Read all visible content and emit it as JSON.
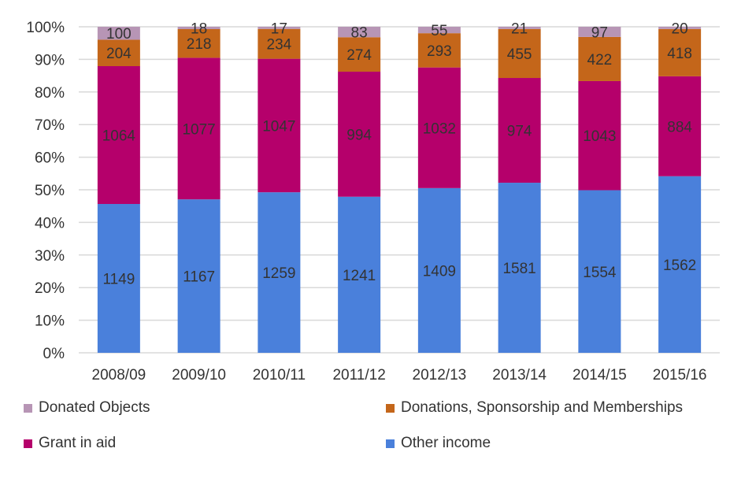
{
  "chart_data": {
    "type": "bar",
    "stacked": "percent",
    "categories": [
      "2008/09",
      "2009/10",
      "2010/11",
      "2011/12",
      "2012/13",
      "2013/14",
      "2014/15",
      "2015/16"
    ],
    "series": [
      {
        "name": "Other income",
        "color": "#4a80db",
        "values": [
          1149,
          1167,
          1259,
          1241,
          1409,
          1581,
          1554,
          1562
        ]
      },
      {
        "name": "Grant in aid",
        "color": "#b5006b",
        "values": [
          1064,
          1077,
          1047,
          994,
          1032,
          974,
          1043,
          884
        ]
      },
      {
        "name": "Donations, Sponsorship and Memberships",
        "color": "#c4661a",
        "values": [
          204,
          218,
          234,
          274,
          293,
          455,
          422,
          418
        ]
      },
      {
        "name": "Donated Objects",
        "color": "#b795b5",
        "values": [
          100,
          18,
          17,
          83,
          55,
          21,
          97,
          20
        ]
      }
    ],
    "yticks": [
      "0%",
      "10%",
      "20%",
      "30%",
      "40%",
      "50%",
      "60%",
      "70%",
      "80%",
      "90%",
      "100%"
    ],
    "ylim": [
      0,
      100
    ],
    "grid": true,
    "legend_position": "bottom",
    "title": "",
    "xlabel": "",
    "ylabel": ""
  },
  "legend": [
    {
      "label": "Donated Objects",
      "color": "#b795b5"
    },
    {
      "label": "Donations, Sponsorship and Memberships",
      "color": "#c4661a"
    },
    {
      "label": "Grant in aid",
      "color": "#b5006b"
    },
    {
      "label": "Other income",
      "color": "#4a80db"
    }
  ]
}
